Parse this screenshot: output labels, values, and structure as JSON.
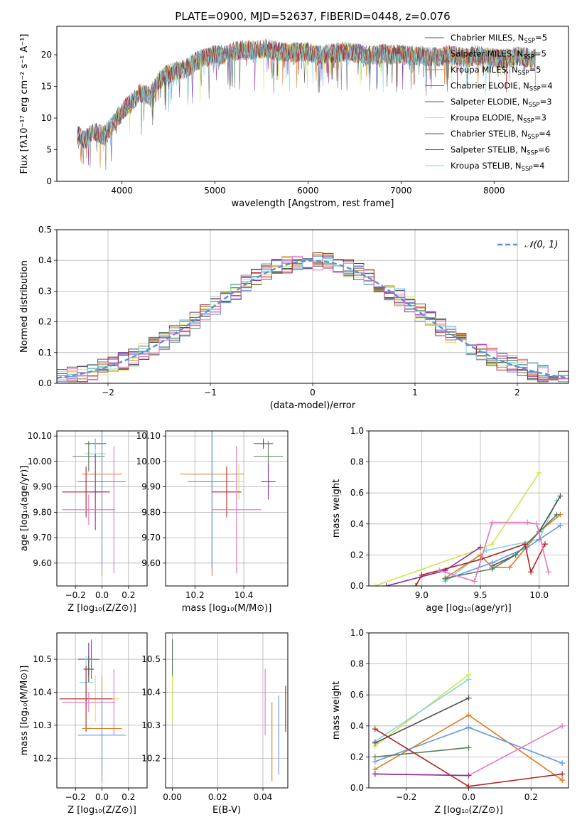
{
  "figure": {
    "title": "PLATE=0900, MJD=52637, FIBERID=0448, z=0.076"
  },
  "colors": {
    "c1": "#4f4f4f",
    "c2": "#6495ed",
    "c3": "#e07b20",
    "c4": "#5a7d5a",
    "c5": "#8b2fa0",
    "c6": "#d4e157",
    "c7": "#555555",
    "c8": "#b22222",
    "c9": "#80d8e0",
    "c10": "#e377c2",
    "normal": "#5b8fd6"
  },
  "chart_data": [
    {
      "id": "spectrum",
      "type": "line",
      "xlabel": "wavelength [Angstrom, rest frame]",
      "ylabel": "Flux [fλ10⁻¹⁷ erg cm⁻² s⁻¹ A⁻¹]",
      "xlim": [
        3300,
        8800
      ],
      "ylim": [
        0,
        24.5
      ],
      "xticks": [
        4000,
        5000,
        6000,
        7000,
        8000
      ],
      "yticks": [
        0,
        5,
        10,
        15,
        20
      ],
      "grid": false,
      "legend_placement": "top-right",
      "spectrum_x": [
        3520,
        3600,
        3700,
        3800,
        3900,
        4000,
        4100,
        4200,
        4300,
        4400,
        4500,
        4600,
        4700,
        4800,
        4900,
        5000,
        5100,
        5200,
        5300,
        5400,
        5500,
        5600,
        5700,
        5800,
        5900,
        6000,
        6100,
        6200,
        6300,
        6400,
        6500,
        6600,
        6700,
        6800,
        6900,
        7000,
        7100,
        7200,
        7300,
        7400,
        7500,
        7600,
        7700,
        7800,
        7900,
        8000,
        8100,
        8200,
        8300,
        8400,
        8450
      ],
      "spectrum_y": [
        7.5,
        6.5,
        8.0,
        7.2,
        9.0,
        11.0,
        12.5,
        14.0,
        13.5,
        16.0,
        17.0,
        17.5,
        18.0,
        19.0,
        19.5,
        20.0,
        20.0,
        20.5,
        20.8,
        20.7,
        21.0,
        20.8,
        20.5,
        20.3,
        20.5,
        20.4,
        20.0,
        20.2,
        20.3,
        20.5,
        20.3,
        20.1,
        19.8,
        20.2,
        20.0,
        20.1,
        19.9,
        19.8,
        19.7,
        19.6,
        20.0,
        19.8,
        19.5,
        20.0,
        19.7,
        19.5,
        19.4,
        19.6,
        19.8,
        19.3,
        19.5
      ],
      "series": [
        {
          "name": "Chabrier MILES, N$_{SSP}$=5",
          "label": "Chabrier MILES, N",
          "sub": "SSP",
          "suffix": "=5",
          "color": "#4f4f4f"
        },
        {
          "name": "Salpeter MILES, N$_{SSP}$=5",
          "label": "Salpeter MILES, N",
          "sub": "SSP",
          "suffix": "=5",
          "color": "#6495ed"
        },
        {
          "name": "Kroupa MILES, N$_{SSP}$=5",
          "label": "Kroupa MILES, N",
          "sub": "SSP",
          "suffix": "=5",
          "color": "#e07b20"
        },
        {
          "name": "Chabrier ELODIE, N$_{SSP}$=4",
          "label": "Chabrier ELODIE, N",
          "sub": "SSP",
          "suffix": "=4",
          "color": "#5a7d5a"
        },
        {
          "name": "Salpeter ELODIE, N$_{SSP}$=3",
          "label": "Salpeter ELODIE, N",
          "sub": "SSP",
          "suffix": "=3",
          "color": "#8b2fa0"
        },
        {
          "name": "Kroupa ELODIE, N$_{SSP}$=3",
          "label": "Kroupa ELODIE, N",
          "sub": "SSP",
          "suffix": "=3",
          "color": "#d4e157"
        },
        {
          "name": "Chabrier STELIB, N$_{SSP}$=4",
          "label": "Chabrier STELIB, N",
          "sub": "SSP",
          "suffix": "=4",
          "color": "#555555"
        },
        {
          "name": "Salpeter STELIB, N$_{SSP}$=6",
          "label": "Salpeter STELIB, N",
          "sub": "SSP",
          "suffix": "=6",
          "color": "#b22222"
        },
        {
          "name": "Kroupa STELIB, N$_{SSP}$=4",
          "label": "Kroupa STELIB, N",
          "sub": "SSP",
          "suffix": "=4",
          "color": "#80d8e0"
        }
      ]
    },
    {
      "id": "residuals",
      "type": "histogram",
      "xlabel": "(data-model)/error",
      "ylabel": "Normed distribution",
      "xlim": [
        -2.5,
        2.5
      ],
      "ylim": [
        0,
        0.5
      ],
      "xticks": [
        -2,
        -1,
        0,
        1,
        2
      ],
      "yticks": [
        0.0,
        0.1,
        0.2,
        0.3,
        0.4,
        0.5
      ],
      "grid": true,
      "legend": "𝒩(0, 1)",
      "bin_width": 0.1,
      "bin_start": -2.5
    },
    {
      "id": "age_vs_Z",
      "type": "errorbar",
      "xlabel": "Z [log₁₀(Z/Z⊙)]",
      "ylabel": "age  [log₁₀(age/yr)]",
      "xlim": [
        -0.34,
        0.34
      ],
      "ylim": [
        9.51,
        10.12
      ],
      "xticks": [
        -0.2,
        0.0,
        0.2
      ],
      "yticks": [
        9.6,
        9.7,
        9.8,
        9.9,
        10.0,
        10.1
      ],
      "grid": true,
      "points": [
        {
          "x": -0.05,
          "y": 10.07,
          "xerr": 0.08,
          "yerr": 0.02,
          "color": "#4f4f4f"
        },
        {
          "x": -0.05,
          "y": 10.03,
          "xerr": 0.08,
          "yerr": 0.06,
          "color": "#80d8e0"
        },
        {
          "x": -0.1,
          "y": 10.02,
          "xerr": 0.12,
          "yerr": 0.06,
          "color": "#5a7d5a"
        },
        {
          "x": 0.0,
          "y": 9.95,
          "xerr": 0.15,
          "yerr": 0.4,
          "color": "#e07b20"
        },
        {
          "x": -0.05,
          "y": 9.92,
          "xerr": 0.15,
          "yerr": 0.07,
          "color": "#d4e157"
        },
        {
          "x": 0.0,
          "y": 9.92,
          "xerr": 0.18,
          "yerr": 0.34,
          "color": "#6495ed"
        },
        {
          "x": -0.12,
          "y": 9.88,
          "xerr": 0.18,
          "yerr": 0.1,
          "color": "#b22222"
        },
        {
          "x": -0.05,
          "y": 9.88,
          "xerr": 0.04,
          "yerr": 0.15,
          "color": "#8b2fa0"
        },
        {
          "x": -0.1,
          "y": 9.81,
          "xerr": 0.2,
          "yerr": 0.06,
          "color": "#e377c2"
        },
        {
          "x": 0.09,
          "y": 9.81,
          "xerr": 0.0,
          "yerr": 0.25,
          "color": "#e377c2"
        }
      ]
    },
    {
      "id": "age_vs_mass",
      "type": "errorbar",
      "xlabel": "mass [log₁₀(M/M⊙)]",
      "xlim": [
        10.08,
        10.58
      ],
      "ylim": [
        9.51,
        10.12
      ],
      "xticks": [
        10.2,
        10.4
      ],
      "yticks": [
        9.6,
        9.7,
        9.8,
        9.9,
        10.0,
        10.1
      ],
      "grid": true,
      "points": [
        {
          "x": 10.48,
          "y": 10.07,
          "xerr": 0.04,
          "yerr": 0.02,
          "color": "#4f4f4f"
        },
        {
          "x": 10.5,
          "y": 10.02,
          "xerr": 0.06,
          "yerr": 0.06,
          "color": "#5a7d5a"
        },
        {
          "x": 10.27,
          "y": 9.95,
          "xerr": 0.13,
          "yerr": 0.4,
          "color": "#e07b20"
        },
        {
          "x": 10.27,
          "y": 9.92,
          "xerr": 0.1,
          "yerr": 0.34,
          "color": "#6495ed"
        },
        {
          "x": 10.38,
          "y": 9.92,
          "xerr": 0.02,
          "yerr": 0.07,
          "color": "#d4e157"
        },
        {
          "x": 10.5,
          "y": 9.92,
          "xerr": 0.03,
          "yerr": 0.07,
          "color": "#8b2fa0"
        },
        {
          "x": 10.33,
          "y": 9.88,
          "xerr": 0.06,
          "yerr": 0.1,
          "color": "#b22222"
        },
        {
          "x": 10.37,
          "y": 9.81,
          "xerr": 0.1,
          "yerr": 0.25,
          "color": "#e377c2"
        }
      ]
    },
    {
      "id": "massweight_vs_age",
      "type": "line",
      "xlabel": "age  [log₁₀(age/yr)]",
      "ylabel": "mass weight",
      "xlim": [
        8.55,
        10.25
      ],
      "ylim": [
        0,
        1.0
      ],
      "xticks": [
        9.0,
        9.5,
        10.0
      ],
      "yticks": [
        0.0,
        0.2,
        0.4,
        0.6,
        0.8,
        1.0
      ],
      "grid": true,
      "series": [
        {
          "color": "#d4e157",
          "x": [
            8.6,
            9.5,
            9.6,
            10.0
          ],
          "y": [
            0.0,
            0.24,
            0.27,
            0.73
          ]
        },
        {
          "color": "#80d8e0",
          "x": [
            9.2,
            9.55,
            10.0,
            10.15
          ],
          "y": [
            0.03,
            0.23,
            0.3,
            0.55
          ]
        },
        {
          "color": "#4f4f4f",
          "x": [
            9.6,
            9.8,
            10.0,
            10.18
          ],
          "y": [
            0.13,
            0.2,
            0.35,
            0.58
          ]
        },
        {
          "color": "#e07b20",
          "x": [
            9.2,
            9.5,
            9.6,
            9.75,
            10.0,
            10.18
          ],
          "y": [
            0.05,
            0.2,
            0.12,
            0.12,
            0.35,
            0.46
          ]
        },
        {
          "color": "#6495ed",
          "x": [
            9.2,
            9.6,
            9.9,
            10.0,
            10.18
          ],
          "y": [
            0.04,
            0.15,
            0.25,
            0.3,
            0.39
          ]
        },
        {
          "color": "#5a7d5a",
          "x": [
            9.2,
            9.6,
            9.8,
            10.15
          ],
          "y": [
            0.05,
            0.11,
            0.2,
            0.46
          ]
        },
        {
          "color": "#8b2fa0",
          "x": [
            8.7,
            9.2,
            9.5
          ],
          "y": [
            0.0,
            0.1,
            0.25
          ]
        },
        {
          "color": "#b22222",
          "x": [
            8.95,
            9.0,
            9.5,
            9.88,
            9.93,
            10.05
          ],
          "y": [
            0.0,
            0.07,
            0.17,
            0.27,
            0.09,
            0.27
          ]
        },
        {
          "color": "#e377c2",
          "x": [
            9.15,
            9.45,
            9.6,
            9.9,
            9.98,
            10.08
          ],
          "y": [
            0.1,
            0.03,
            0.41,
            0.41,
            0.4,
            0.09
          ]
        }
      ]
    },
    {
      "id": "mass_vs_Z",
      "type": "errorbar",
      "xlabel": "Z [log₁₀(Z/Z⊙)]",
      "ylabel": "mass [log₁₀(M/M⊙)]",
      "xlim": [
        -0.34,
        0.34
      ],
      "ylim": [
        10.11,
        10.58
      ],
      "xticks": [
        -0.2,
        0.0,
        0.2
      ],
      "yticks": [
        10.2,
        10.3,
        10.4,
        10.5
      ],
      "grid": true,
      "points": [
        {
          "x": -0.1,
          "y": 10.5,
          "xerr": 0.08,
          "yerr": 0.05,
          "color": "#8b2fa0"
        },
        {
          "x": -0.1,
          "y": 10.47,
          "xerr": 0.04,
          "yerr": 0.04,
          "color": "#4f4f4f"
        },
        {
          "x": -0.08,
          "y": 10.5,
          "xerr": 0.06,
          "yerr": 0.06,
          "color": "#5a7d5a"
        },
        {
          "x": -0.12,
          "y": 10.43,
          "xerr": 0.05,
          "yerr": 0.08,
          "color": "#80d8e0"
        },
        {
          "x": -0.05,
          "y": 10.38,
          "xerr": 0.18,
          "yerr": 0.07,
          "color": "#d4e157"
        },
        {
          "x": -0.12,
          "y": 10.38,
          "xerr": 0.2,
          "yerr": 0.1,
          "color": "#b22222"
        },
        {
          "x": -0.1,
          "y": 10.37,
          "xerr": 0.2,
          "yerr": 0.03,
          "color": "#e377c2"
        },
        {
          "x": 0.09,
          "y": 10.37,
          "xerr": 0.0,
          "yerr": 0.1,
          "color": "#e377c2"
        },
        {
          "x": 0.0,
          "y": 10.29,
          "xerr": 0.15,
          "yerr": 0.16,
          "color": "#e07b20"
        },
        {
          "x": 0.0,
          "y": 10.27,
          "xerr": 0.18,
          "yerr": 0.12,
          "color": "#6495ed"
        }
      ]
    },
    {
      "id": "mass_vs_EBV",
      "type": "errorbar",
      "xlabel": "E(B-V)",
      "xlim": [
        -0.003,
        0.051
      ],
      "ylim": [
        10.11,
        10.58
      ],
      "xticks": [
        0.0,
        0.02,
        0.04
      ],
      "yticks": [
        10.2,
        10.3,
        10.4,
        10.5
      ],
      "grid": true,
      "points": [
        {
          "x": 0.0,
          "y": 10.5,
          "xerr": 0.0,
          "yerr": 0.06,
          "color": "#4f4f4f"
        },
        {
          "x": 0.0,
          "y": 10.48,
          "xerr": 0.0,
          "yerr": 0.08,
          "color": "#5a7d5a"
        },
        {
          "x": 0.0,
          "y": 10.38,
          "xerr": 0.0,
          "yerr": 0.07,
          "color": "#d4e157"
        },
        {
          "x": 0.041,
          "y": 10.37,
          "xerr": 0.0,
          "yerr": 0.1,
          "color": "#e377c2"
        },
        {
          "x": 0.044,
          "y": 10.25,
          "xerr": 0.0,
          "yerr": 0.12,
          "color": "#e07b20"
        },
        {
          "x": 0.047,
          "y": 10.27,
          "xerr": 0.0,
          "yerr": 0.12,
          "color": "#6495ed"
        },
        {
          "x": 0.05,
          "y": 10.35,
          "xerr": 0.0,
          "yerr": 0.07,
          "color": "#b22222"
        }
      ]
    },
    {
      "id": "massweight_vs_Z",
      "type": "line",
      "xlabel": "Z [log₁₀(Z/Z⊙)]",
      "ylabel": "mass weight",
      "xlim": [
        -0.32,
        0.32
      ],
      "ylim": [
        0,
        1.0
      ],
      "xticks": [
        -0.2,
        0.0,
        0.2
      ],
      "yticks": [
        0.0,
        0.2,
        0.4,
        0.6,
        0.8,
        1.0
      ],
      "grid": true,
      "series": [
        {
          "color": "#d4e157",
          "x": [
            -0.3,
            0.0
          ],
          "y": [
            0.27,
            0.73
          ]
        },
        {
          "color": "#80d8e0",
          "x": [
            -0.3,
            0.0
          ],
          "y": [
            0.3,
            0.7
          ]
        },
        {
          "color": "#4f4f4f",
          "x": [
            -0.3,
            0.0
          ],
          "y": [
            0.29,
            0.58
          ]
        },
        {
          "color": "#e07b20",
          "x": [
            -0.3,
            0.0,
            0.3
          ],
          "y": [
            0.12,
            0.47,
            0.05
          ]
        },
        {
          "color": "#6495ed",
          "x": [
            -0.3,
            0.0,
            0.3
          ],
          "y": [
            0.17,
            0.39,
            0.16
          ]
        },
        {
          "color": "#5a7d5a",
          "x": [
            -0.3,
            0.0
          ],
          "y": [
            0.2,
            0.26
          ]
        },
        {
          "color": "#b22222",
          "x": [
            -0.3,
            0.0,
            0.3
          ],
          "y": [
            0.38,
            0.01,
            0.09
          ]
        },
        {
          "color": "#e377c2",
          "x": [
            -0.3,
            0.0,
            0.3
          ],
          "y": [
            0.09,
            0.08,
            0.4
          ]
        },
        {
          "color": "#8b2fa0",
          "x": [
            -0.3,
            0.0
          ],
          "y": [
            0.09,
            0.08
          ]
        }
      ]
    }
  ]
}
